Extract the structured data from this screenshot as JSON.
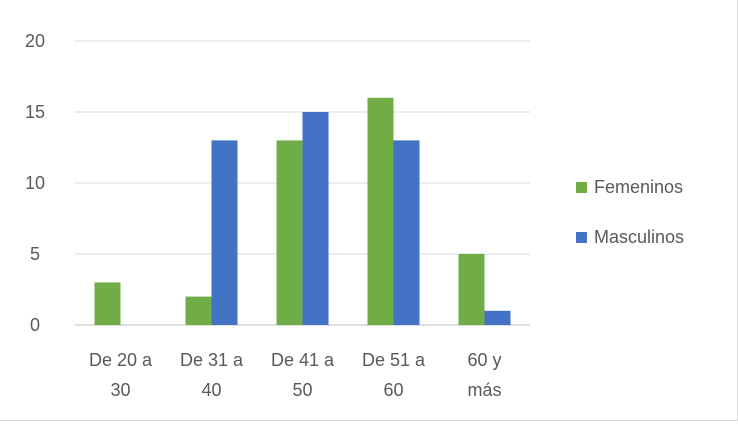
{
  "chart_data": {
    "type": "bar",
    "categories": [
      [
        "De 20 a",
        "30"
      ],
      [
        "De 31 a",
        "40"
      ],
      [
        "De 41 a",
        "50"
      ],
      [
        "De 51 a",
        "60"
      ],
      [
        "60 y",
        "más"
      ]
    ],
    "series": [
      {
        "name": "Femeninos",
        "values": [
          3,
          2,
          13,
          16,
          5
        ],
        "color": "#70AD47"
      },
      {
        "name": "Masculinos",
        "values": [
          0,
          13,
          15,
          13,
          1
        ],
        "color": "#4472C4"
      }
    ],
    "ylim": [
      0,
      20
    ],
    "yticks": [
      0,
      5,
      10,
      15,
      20
    ],
    "grid": true,
    "legend_position": "right",
    "title": "",
    "xlabel": "",
    "ylabel": ""
  }
}
